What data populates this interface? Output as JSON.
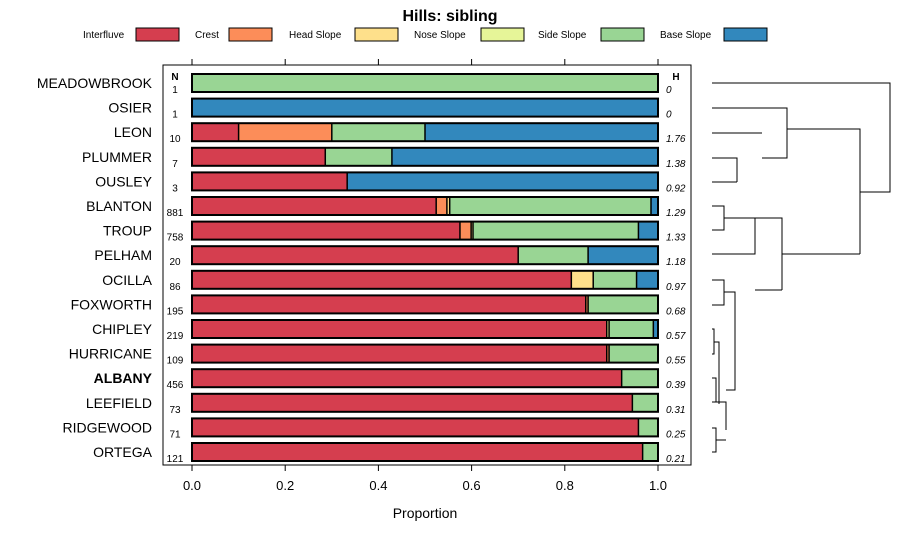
{
  "chart_data": {
    "type": "bar",
    "stacked": true,
    "orientation": "horizontal",
    "title": "Hills: sibling",
    "xlabel": "Proportion",
    "ylabel": "",
    "xlim": [
      0,
      1
    ],
    "x_ticks": [
      "0.0",
      "0.2",
      "0.4",
      "0.6",
      "0.8",
      "1.0"
    ],
    "legend_position": "top",
    "n_header": "N",
    "h_header": "H",
    "highlight": "ALBANY",
    "categories": [
      "MEADOWBROOK",
      "OSIER",
      "LEON",
      "PLUMMER",
      "OUSLEY",
      "BLANTON",
      "TROUP",
      "PELHAM",
      "OCILLA",
      "FOXWORTH",
      "CHIPLEY",
      "HURRICANE",
      "ALBANY",
      "LEEFIELD",
      "RIDGEWOOD",
      "ORTEGA"
    ],
    "n": [
      "1",
      "1",
      "10",
      "7",
      "3",
      "881",
      "758",
      "20",
      "86",
      "195",
      "219",
      "109",
      "456",
      "73",
      "71",
      "121"
    ],
    "h": [
      "0",
      "0",
      "1.76",
      "1.38",
      "0.92",
      "1.29",
      "1.33",
      "1.18",
      "0.97",
      "0.68",
      "0.57",
      "0.55",
      "0.39",
      "0.31",
      "0.25",
      "0.21"
    ],
    "series": [
      {
        "name": "Interfluve",
        "color": "#d53e4f",
        "values": [
          0,
          0,
          0.1,
          0.286,
          0.333,
          0.524,
          0.575,
          0.7,
          0.814,
          0.845,
          0.89,
          0.89,
          0.922,
          0.945,
          0.958,
          0.967
        ]
      },
      {
        "name": "Crest",
        "color": "#fc8d59",
        "values": [
          0,
          0,
          0.2,
          0,
          0,
          0.023,
          0.024,
          0,
          0,
          0.005,
          0,
          0.005,
          0,
          0,
          0,
          0
        ]
      },
      {
        "name": "Head Slope",
        "color": "#fee08b",
        "values": [
          0,
          0,
          0,
          0,
          0,
          0.006,
          0.004,
          0,
          0.047,
          0,
          0,
          0,
          0,
          0,
          0,
          0
        ]
      },
      {
        "name": "Nose Slope",
        "color": "#e6f598",
        "values": [
          0,
          0,
          0,
          0,
          0,
          0,
          0,
          0,
          0,
          0,
          0.005,
          0,
          0,
          0,
          0,
          0
        ]
      },
      {
        "name": "Side Slope",
        "color": "#99d594",
        "values": [
          1,
          0,
          0.2,
          0.143,
          0,
          0.432,
          0.355,
          0.15,
          0.093,
          0.15,
          0.095,
          0.105,
          0.078,
          0.055,
          0.042,
          0.033
        ]
      },
      {
        "name": "Base Slope",
        "color": "#3288bd",
        "values": [
          0,
          1,
          0.5,
          0.571,
          0.667,
          0.015,
          0.042,
          0.15,
          0.046,
          0,
          0.01,
          0,
          0,
          0,
          0,
          0
        ]
      }
    ]
  }
}
